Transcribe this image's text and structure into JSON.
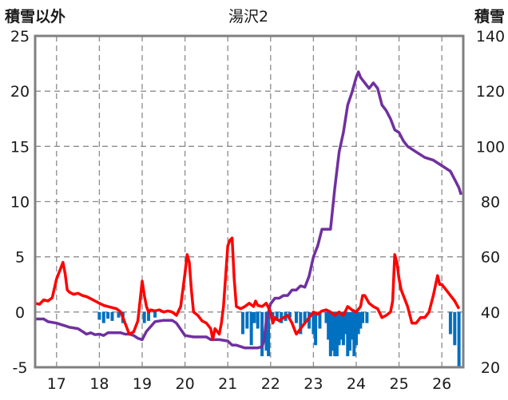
{
  "chart_data": {
    "type": "line",
    "title": "湯沢2",
    "left_axis": {
      "label": "積雪以外",
      "ylim": [
        -5,
        25
      ],
      "ticks": [
        -5,
        0,
        5,
        10,
        15,
        20,
        25
      ]
    },
    "right_axis": {
      "label": "積雪",
      "ylim": [
        20,
        140
      ],
      "ticks": [
        20,
        40,
        60,
        80,
        100,
        120,
        140
      ]
    },
    "x_axis": {
      "xlim": [
        16.5,
        26.5
      ],
      "ticks": [
        17,
        18,
        19,
        20,
        21,
        22,
        23,
        24,
        25,
        26
      ]
    },
    "grid": true,
    "colors": {
      "red_line": "#ff0000",
      "purple_line": "#7030a0",
      "blue_bars": "#0070c0"
    },
    "series": [
      {
        "axis": "left",
        "style": "line",
        "color": "#ff0000",
        "points": [
          [
            16.5,
            0.8
          ],
          [
            16.6,
            0.7
          ],
          [
            16.7,
            1.1
          ],
          [
            16.8,
            1.0
          ],
          [
            16.9,
            1.3
          ],
          [
            17.0,
            3.0
          ],
          [
            17.05,
            3.5
          ],
          [
            17.1,
            4.0
          ],
          [
            17.15,
            4.5
          ],
          [
            17.2,
            3.5
          ],
          [
            17.25,
            2.0
          ],
          [
            17.3,
            1.8
          ],
          [
            17.4,
            1.6
          ],
          [
            17.5,
            1.7
          ],
          [
            17.6,
            1.5
          ],
          [
            17.7,
            1.4
          ],
          [
            17.8,
            1.2
          ],
          [
            17.9,
            1.0
          ],
          [
            18.0,
            0.8
          ],
          [
            18.1,
            0.6
          ],
          [
            18.2,
            0.5
          ],
          [
            18.3,
            0.4
          ],
          [
            18.4,
            0.3
          ],
          [
            18.5,
            0.0
          ],
          [
            18.6,
            -1.0
          ],
          [
            18.7,
            -2.0
          ],
          [
            18.8,
            -1.8
          ],
          [
            18.9,
            -0.8
          ],
          [
            18.95,
            1.0
          ],
          [
            19.0,
            2.8
          ],
          [
            19.05,
            1.5
          ],
          [
            19.1,
            0.5
          ],
          [
            19.15,
            0.0
          ],
          [
            19.2,
            0.2
          ],
          [
            19.3,
            0.1
          ],
          [
            19.4,
            0.2
          ],
          [
            19.5,
            0.0
          ],
          [
            19.6,
            0.1
          ],
          [
            19.7,
            0.0
          ],
          [
            19.8,
            -0.3
          ],
          [
            19.9,
            0.5
          ],
          [
            20.0,
            3.5
          ],
          [
            20.05,
            5.2
          ],
          [
            20.1,
            4.5
          ],
          [
            20.15,
            2.0
          ],
          [
            20.2,
            0.0
          ],
          [
            20.3,
            -0.3
          ],
          [
            20.4,
            -0.8
          ],
          [
            20.5,
            -1.0
          ],
          [
            20.6,
            -1.5
          ],
          [
            20.65,
            -2.5
          ],
          [
            20.7,
            -1.5
          ],
          [
            20.8,
            -2.0
          ],
          [
            20.85,
            -1.0
          ],
          [
            20.9,
            0.5
          ],
          [
            21.0,
            6.0
          ],
          [
            21.05,
            6.5
          ],
          [
            21.1,
            6.7
          ],
          [
            21.15,
            3.0
          ],
          [
            21.2,
            0.5
          ],
          [
            21.3,
            0.3
          ],
          [
            21.4,
            0.5
          ],
          [
            21.5,
            0.8
          ],
          [
            21.6,
            0.5
          ],
          [
            21.65,
            1.0
          ],
          [
            21.7,
            0.6
          ],
          [
            21.8,
            0.5
          ],
          [
            21.9,
            0.8
          ],
          [
            22.0,
            0.0
          ],
          [
            22.05,
            -1.0
          ],
          [
            22.1,
            -0.5
          ],
          [
            22.2,
            -0.8
          ],
          [
            22.3,
            -0.5
          ],
          [
            22.4,
            -0.3
          ],
          [
            22.5,
            -1.0
          ],
          [
            22.6,
            -2.0
          ],
          [
            22.7,
            -1.5
          ],
          [
            22.8,
            -1.0
          ],
          [
            22.9,
            -0.5
          ],
          [
            23.0,
            0.0
          ],
          [
            23.1,
            -0.2
          ],
          [
            23.2,
            0.1
          ],
          [
            23.3,
            0.2
          ],
          [
            23.4,
            0.0
          ],
          [
            23.5,
            -0.3
          ],
          [
            23.6,
            0.0
          ],
          [
            23.7,
            -0.3
          ],
          [
            23.8,
            0.5
          ],
          [
            23.9,
            0.2
          ],
          [
            24.0,
            0.0
          ],
          [
            24.1,
            0.5
          ],
          [
            24.15,
            1.5
          ],
          [
            24.2,
            1.5
          ],
          [
            24.3,
            0.8
          ],
          [
            24.4,
            0.5
          ],
          [
            24.5,
            0.3
          ],
          [
            24.6,
            -0.5
          ],
          [
            24.7,
            -0.3
          ],
          [
            24.8,
            0.0
          ],
          [
            24.85,
            1.0
          ],
          [
            24.9,
            5.2
          ],
          [
            24.95,
            4.5
          ],
          [
            25.0,
            3.0
          ],
          [
            25.05,
            2.0
          ],
          [
            25.1,
            1.5
          ],
          [
            25.2,
            0.5
          ],
          [
            25.3,
            -1.0
          ],
          [
            25.4,
            -1.0
          ],
          [
            25.5,
            -0.5
          ],
          [
            25.6,
            -0.5
          ],
          [
            25.7,
            0.0
          ],
          [
            25.8,
            1.5
          ],
          [
            25.9,
            3.3
          ],
          [
            25.95,
            2.5
          ],
          [
            26.0,
            2.5
          ],
          [
            26.1,
            2.0
          ],
          [
            26.2,
            1.5
          ],
          [
            26.3,
            1.0
          ],
          [
            26.4,
            0.3
          ]
        ]
      },
      {
        "axis": "right",
        "style": "line",
        "color": "#7030a0",
        "points": [
          [
            16.5,
            37.5
          ],
          [
            16.7,
            37.5
          ],
          [
            16.8,
            36.5
          ],
          [
            17.0,
            36.0
          ],
          [
            17.1,
            35.5
          ],
          [
            17.2,
            35.0
          ],
          [
            17.3,
            34.5
          ],
          [
            17.5,
            34.0
          ],
          [
            17.6,
            33.0
          ],
          [
            17.7,
            32.0
          ],
          [
            17.8,
            32.5
          ],
          [
            17.9,
            31.8
          ],
          [
            18.0,
            32.0
          ],
          [
            18.1,
            31.5
          ],
          [
            18.2,
            32.5
          ],
          [
            18.3,
            32.5
          ],
          [
            18.5,
            32.5
          ],
          [
            18.6,
            32.0
          ],
          [
            18.7,
            32.0
          ],
          [
            18.8,
            31.5
          ],
          [
            18.9,
            30.5
          ],
          [
            19.0,
            30.0
          ],
          [
            19.1,
            33.0
          ],
          [
            19.3,
            36.5
          ],
          [
            19.5,
            37.0
          ],
          [
            19.7,
            37.0
          ],
          [
            19.8,
            36.0
          ],
          [
            20.0,
            31.5
          ],
          [
            20.2,
            31.0
          ],
          [
            20.5,
            31.0
          ],
          [
            20.6,
            30.0
          ],
          [
            20.8,
            30.0
          ],
          [
            21.0,
            29.5
          ],
          [
            21.1,
            28.0
          ],
          [
            21.2,
            28.0
          ],
          [
            21.4,
            27.0
          ],
          [
            21.6,
            27.0
          ],
          [
            21.7,
            27.0
          ],
          [
            21.8,
            27.5
          ],
          [
            21.85,
            30.0
          ],
          [
            21.9,
            37.0
          ],
          [
            22.0,
            43.0
          ],
          [
            22.1,
            45.0
          ],
          [
            22.2,
            45.0
          ],
          [
            22.3,
            46.0
          ],
          [
            22.4,
            46.0
          ],
          [
            22.5,
            48.0
          ],
          [
            22.6,
            48.0
          ],
          [
            22.7,
            49.5
          ],
          [
            22.8,
            49.0
          ],
          [
            22.9,
            53.0
          ],
          [
            23.0,
            60.0
          ],
          [
            23.1,
            64.0
          ],
          [
            23.2,
            70.0
          ],
          [
            23.25,
            70.0
          ],
          [
            23.3,
            70.0
          ],
          [
            23.4,
            70.0
          ],
          [
            23.5,
            85.0
          ],
          [
            23.6,
            98.0
          ],
          [
            23.7,
            105.0
          ],
          [
            23.8,
            115.0
          ],
          [
            23.9,
            119.5
          ],
          [
            24.0,
            125.0
          ],
          [
            24.05,
            127.0
          ],
          [
            24.1,
            125.0
          ],
          [
            24.2,
            123.0
          ],
          [
            24.3,
            121.0
          ],
          [
            24.4,
            123.0
          ],
          [
            24.5,
            121.0
          ],
          [
            24.6,
            115.0
          ],
          [
            24.7,
            113.0
          ],
          [
            24.8,
            110.0
          ],
          [
            24.9,
            106.0
          ],
          [
            25.0,
            105.0
          ],
          [
            25.1,
            102.0
          ],
          [
            25.2,
            100.0
          ],
          [
            25.4,
            98.0
          ],
          [
            25.6,
            96.0
          ],
          [
            25.8,
            95.0
          ],
          [
            26.0,
            93.0
          ],
          [
            26.2,
            91.0
          ],
          [
            26.3,
            88.0
          ],
          [
            26.4,
            85.0
          ],
          [
            26.45,
            82.5
          ]
        ]
      },
      {
        "axis": "left",
        "style": "bar",
        "color": "#0070c0",
        "points": [
          [
            18.0,
            -0.7
          ],
          [
            18.1,
            -1.0
          ],
          [
            18.2,
            -0.6
          ],
          [
            18.3,
            -0.8
          ],
          [
            18.45,
            -0.5
          ],
          [
            18.55,
            -1.0
          ],
          [
            19.05,
            -1.0
          ],
          [
            19.15,
            -0.8
          ],
          [
            19.3,
            -0.5
          ],
          [
            21.35,
            -2.0
          ],
          [
            21.45,
            -1.5
          ],
          [
            21.55,
            -3.0
          ],
          [
            21.62,
            -1.0
          ],
          [
            21.7,
            -1.5
          ],
          [
            21.8,
            -4.0
          ],
          [
            21.9,
            -3.5
          ],
          [
            21.95,
            -4.0
          ],
          [
            22.05,
            -0.5
          ],
          [
            22.15,
            -0.8
          ],
          [
            22.25,
            -1.0
          ],
          [
            22.35,
            -0.8
          ],
          [
            22.45,
            -0.5
          ],
          [
            22.6,
            -1.0
          ],
          [
            22.7,
            -2.0
          ],
          [
            22.8,
            -1.0
          ],
          [
            22.9,
            -1.5
          ],
          [
            23.0,
            -2.0
          ],
          [
            23.05,
            -3.0
          ],
          [
            23.15,
            -1.5
          ],
          [
            23.3,
            -1.0
          ],
          [
            23.35,
            -2.5
          ],
          [
            23.4,
            -4.0
          ],
          [
            23.45,
            -3.5
          ],
          [
            23.5,
            -4.0
          ],
          [
            23.55,
            -4.0
          ],
          [
            23.6,
            -3.0
          ],
          [
            23.65,
            -2.5
          ],
          [
            23.7,
            -3.0
          ],
          [
            23.75,
            -2.0
          ],
          [
            23.8,
            -4.0
          ],
          [
            23.85,
            -3.5
          ],
          [
            23.9,
            -2.5
          ],
          [
            23.95,
            -4.0
          ],
          [
            24.0,
            -3.0
          ],
          [
            24.05,
            -2.0
          ],
          [
            24.1,
            -1.5
          ],
          [
            24.15,
            -1.0
          ],
          [
            24.25,
            -1.0
          ],
          [
            26.2,
            -2.0
          ],
          [
            26.3,
            -3.0
          ],
          [
            26.4,
            -5.0
          ]
        ]
      }
    ]
  }
}
